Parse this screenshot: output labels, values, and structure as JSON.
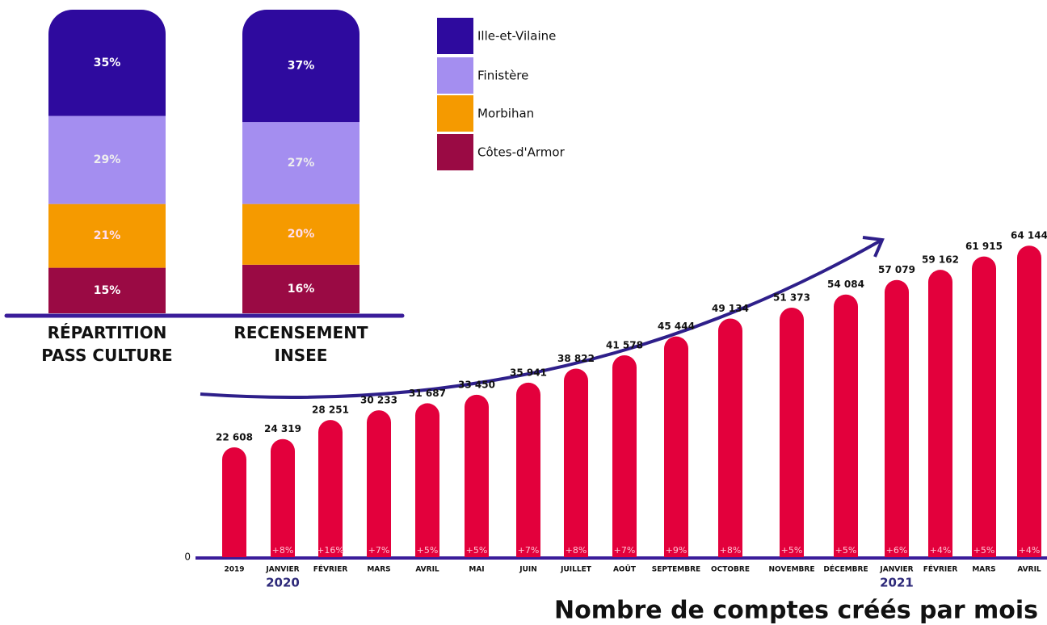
{
  "chart_data": [
    {
      "type": "stacked_bar",
      "categories": [
        "RÉPARTITION PASS CULTURE",
        "RECENSEMENT INSEE"
      ],
      "ylim": [
        0,
        100
      ],
      "series": [
        {
          "name": "Ille-et-Vilaine",
          "color": "#2e0a9e",
          "values": [
            35,
            37
          ],
          "value_labels": [
            "35%",
            "37%"
          ]
        },
        {
          "name": "Finistère",
          "color": "#a48ef0",
          "values": [
            29,
            27
          ],
          "value_labels": [
            "29%",
            "27%"
          ]
        },
        {
          "name": "Morbihan",
          "color": "#f59a00",
          "values": [
            21,
            20
          ],
          "value_labels": [
            "21%",
            "20%"
          ]
        },
        {
          "name": "Côtes-d'Armor",
          "color": "#9a0a44",
          "values": [
            15,
            16
          ],
          "value_labels": [
            "15%",
            "16%"
          ]
        }
      ]
    },
    {
      "type": "bar",
      "title": "Nombre de comptes créés par mois",
      "color": "#e3003c",
      "categories": [
        "2019",
        "JANVIER",
        "FÉVRIER",
        "MARS",
        "AVRIL",
        "MAI",
        "JUIN",
        "JUILLET",
        "AOÛT",
        "SEPTEMBRE",
        "OCTOBRE",
        "NOVEMBRE",
        "DÉCEMBRE",
        "JANVIER",
        "FÉVRIER",
        "MARS",
        "AVRIL"
      ],
      "values": [
        22608,
        24319,
        28251,
        30233,
        31687,
        33450,
        35941,
        38822,
        41578,
        45444,
        49134,
        51373,
        54084,
        57079,
        59162,
        61915,
        64144
      ],
      "value_labels": [
        "22 608",
        "24 319",
        "28 251",
        "30 233",
        "31 687",
        "33 450",
        "35 941",
        "38 822",
        "41 578",
        "45 444",
        "49 134",
        "51 373",
        "54 084",
        "57 079",
        "59 162",
        "61 915",
        "64 144"
      ],
      "growth_labels": [
        null,
        "+8%",
        "+16%",
        "+7%",
        "+5%",
        "+5%",
        "+7%",
        "+8%",
        "+7%",
        "+9%",
        "+8%",
        "+5%",
        "+5%",
        "+6%",
        "+4%",
        "+5%",
        "+4%"
      ],
      "year_labels": [
        "2020",
        "2021"
      ],
      "ylim": [
        0,
        70000
      ],
      "yticks": [
        0
      ]
    }
  ]
}
